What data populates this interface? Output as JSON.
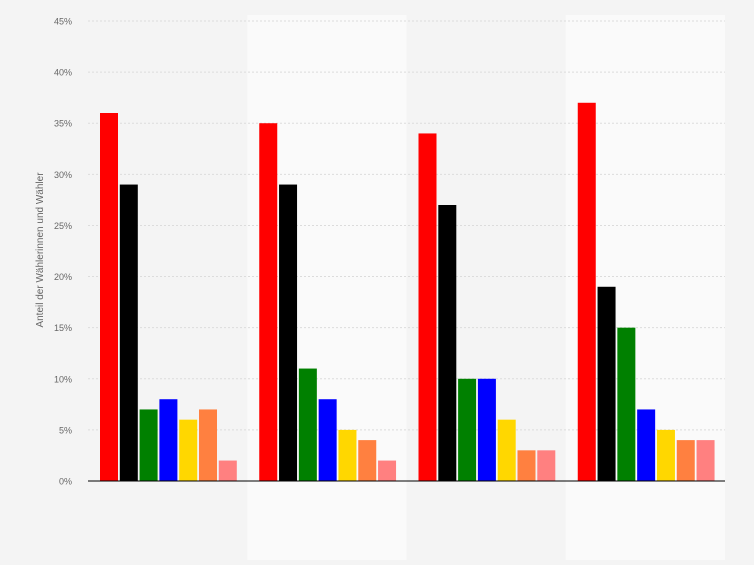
{
  "chart_data": {
    "type": "bar",
    "ylabel": "Anteil der Wählerinnen und Wähler",
    "ylim": [
      0,
      45
    ],
    "yticks": [
      0,
      5,
      10,
      15,
      20,
      25,
      30,
      35,
      40,
      45
    ],
    "ytick_labels": [
      "0%",
      "5%",
      "10%",
      "15%",
      "20%",
      "25%",
      "30%",
      "35%",
      "40%",
      "45%"
    ],
    "grid": true,
    "legend": "none",
    "categories": [
      "",
      "",
      "",
      ""
    ],
    "series": [
      {
        "color": "#ff0000",
        "values": [
          36,
          35,
          34,
          37
        ]
      },
      {
        "color": "#000000",
        "values": [
          29,
          29,
          27,
          19
        ]
      },
      {
        "color": "#008000",
        "values": [
          7,
          11,
          10,
          15
        ]
      },
      {
        "color": "#0000ff",
        "values": [
          8,
          8,
          10,
          7
        ]
      },
      {
        "color": "#ffd700",
        "values": [
          6,
          5,
          6,
          5
        ]
      },
      {
        "color": "#ff8040",
        "values": [
          7,
          4,
          3,
          4
        ]
      },
      {
        "color": "#ff8080",
        "values": [
          2,
          2,
          3,
          4
        ]
      }
    ]
  },
  "colors": {
    "background": "#f4f4f4",
    "band": "#fafafa",
    "grid": "#dcdcdc",
    "axis_text": "#666666"
  }
}
